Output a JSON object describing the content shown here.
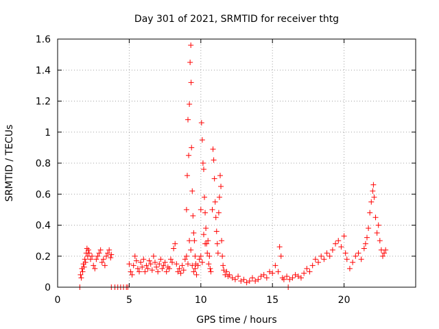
{
  "chart_data": {
    "type": "scatter",
    "title": "Day 301 of 2021, SRMTID for receiver thtg",
    "xlabel": "GPS time / hours",
    "ylabel": "SRMTID / TECUs",
    "xlim": [
      0,
      25
    ],
    "ylim": [
      0,
      1.6
    ],
    "xticks": [
      0,
      5,
      10,
      15,
      20
    ],
    "xtick_labels": [
      "0",
      "5",
      "10",
      "15",
      "20"
    ],
    "yticks": [
      0,
      0.2,
      0.4,
      0.6,
      0.8,
      1,
      1.2,
      1.4,
      1.6
    ],
    "ytick_labels": [
      "0",
      "0.2",
      "0.4",
      "0.6",
      "0.8",
      "1",
      "1.2",
      "1.4",
      "1.6"
    ],
    "grid": true,
    "marker": "+",
    "color": "#ff0000",
    "series": [
      {
        "name": "SRMTID",
        "points": [
          [
            1.55,
            0.0
          ],
          [
            1.6,
            0.08
          ],
          [
            1.65,
            0.06
          ],
          [
            1.7,
            0.12
          ],
          [
            1.75,
            0.1
          ],
          [
            1.8,
            0.15
          ],
          [
            1.85,
            0.13
          ],
          [
            1.9,
            0.18
          ],
          [
            1.95,
            0.16
          ],
          [
            2.0,
            0.22
          ],
          [
            2.05,
            0.25
          ],
          [
            2.1,
            0.2
          ],
          [
            2.15,
            0.24
          ],
          [
            2.2,
            0.22
          ],
          [
            2.3,
            0.18
          ],
          [
            2.4,
            0.2
          ],
          [
            2.5,
            0.14
          ],
          [
            2.6,
            0.12
          ],
          [
            2.7,
            0.18
          ],
          [
            2.8,
            0.2
          ],
          [
            2.9,
            0.22
          ],
          [
            3.0,
            0.24
          ],
          [
            3.1,
            0.16
          ],
          [
            3.2,
            0.18
          ],
          [
            3.3,
            0.14
          ],
          [
            3.4,
            0.2
          ],
          [
            3.5,
            0.22
          ],
          [
            3.6,
            0.24
          ],
          [
            3.7,
            0.19
          ],
          [
            3.75,
            0.21
          ],
          [
            3.75,
            0.0
          ],
          [
            4.0,
            0.0
          ],
          [
            4.2,
            0.0
          ],
          [
            4.4,
            0.0
          ],
          [
            4.6,
            0.0
          ],
          [
            4.8,
            0.0
          ],
          [
            4.9,
            0.0
          ],
          [
            5.0,
            0.15
          ],
          [
            5.1,
            0.1
          ],
          [
            5.2,
            0.08
          ],
          [
            5.3,
            0.14
          ],
          [
            5.4,
            0.2
          ],
          [
            5.5,
            0.17
          ],
          [
            5.6,
            0.12
          ],
          [
            5.7,
            0.1
          ],
          [
            5.8,
            0.16
          ],
          [
            5.9,
            0.13
          ],
          [
            6.0,
            0.18
          ],
          [
            6.1,
            0.1
          ],
          [
            6.2,
            0.14
          ],
          [
            6.3,
            0.12
          ],
          [
            6.4,
            0.17
          ],
          [
            6.5,
            0.15
          ],
          [
            6.6,
            0.11
          ],
          [
            6.7,
            0.2
          ],
          [
            6.8,
            0.16
          ],
          [
            6.9,
            0.13
          ],
          [
            7.0,
            0.1
          ],
          [
            7.1,
            0.15
          ],
          [
            7.2,
            0.18
          ],
          [
            7.3,
            0.12
          ],
          [
            7.4,
            0.14
          ],
          [
            7.5,
            0.16
          ],
          [
            7.6,
            0.1
          ],
          [
            7.7,
            0.13
          ],
          [
            7.8,
            0.12
          ],
          [
            7.9,
            0.18
          ],
          [
            8.0,
            0.16
          ],
          [
            8.1,
            0.25
          ],
          [
            8.2,
            0.28
          ],
          [
            8.3,
            0.15
          ],
          [
            8.4,
            0.1
          ],
          [
            8.5,
            0.12
          ],
          [
            8.6,
            0.09
          ],
          [
            8.7,
            0.14
          ],
          [
            8.8,
            0.11
          ],
          [
            8.9,
            0.18
          ],
          [
            9.0,
            0.5
          ],
          [
            9.05,
            0.72
          ],
          [
            9.1,
            1.08
          ],
          [
            9.15,
            0.85
          ],
          [
            9.2,
            1.18
          ],
          [
            9.25,
            1.45
          ],
          [
            9.3,
            1.56
          ],
          [
            9.32,
            1.32
          ],
          [
            9.35,
            0.9
          ],
          [
            9.4,
            0.62
          ],
          [
            9.45,
            0.46
          ],
          [
            9.5,
            0.35
          ],
          [
            9.55,
            0.3
          ],
          [
            9.6,
            0.2
          ],
          [
            9.65,
            0.15
          ],
          [
            9.0,
            0.2
          ],
          [
            9.1,
            0.15
          ],
          [
            9.2,
            0.3
          ],
          [
            9.3,
            0.24
          ],
          [
            9.4,
            0.14
          ],
          [
            9.5,
            0.1
          ],
          [
            9.6,
            0.12
          ],
          [
            9.7,
            0.08
          ],
          [
            9.8,
            0.14
          ],
          [
            9.9,
            0.18
          ],
          [
            10.0,
            0.5
          ],
          [
            10.05,
            1.06
          ],
          [
            10.1,
            0.95
          ],
          [
            10.15,
            0.8
          ],
          [
            10.2,
            0.76
          ],
          [
            10.25,
            0.58
          ],
          [
            10.3,
            0.48
          ],
          [
            10.35,
            0.38
          ],
          [
            10.4,
            0.28
          ],
          [
            10.45,
            0.22
          ],
          [
            10.5,
            0.3
          ],
          [
            10.55,
            0.15
          ],
          [
            10.6,
            0.2
          ],
          [
            10.65,
            0.12
          ],
          [
            10.7,
            0.1
          ],
          [
            10.0,
            0.2
          ],
          [
            10.1,
            0.16
          ],
          [
            10.2,
            0.34
          ],
          [
            10.3,
            0.28
          ],
          [
            10.8,
            0.5
          ],
          [
            10.85,
            0.89
          ],
          [
            10.9,
            0.82
          ],
          [
            10.95,
            0.7
          ],
          [
            11.0,
            0.55
          ],
          [
            11.05,
            0.45
          ],
          [
            11.1,
            0.36
          ],
          [
            11.15,
            0.28
          ],
          [
            11.2,
            0.22
          ],
          [
            11.25,
            0.48
          ],
          [
            11.3,
            0.58
          ],
          [
            11.35,
            0.72
          ],
          [
            11.4,
            0.65
          ],
          [
            11.45,
            0.3
          ],
          [
            11.5,
            0.2
          ],
          [
            11.55,
            0.14
          ],
          [
            11.6,
            0.11
          ],
          [
            11.7,
            0.08
          ],
          [
            11.8,
            0.1
          ],
          [
            11.9,
            0.07
          ],
          [
            12.0,
            0.08
          ],
          [
            12.2,
            0.06
          ],
          [
            12.4,
            0.05
          ],
          [
            12.6,
            0.07
          ],
          [
            12.8,
            0.04
          ],
          [
            13.0,
            0.05
          ],
          [
            13.2,
            0.03
          ],
          [
            13.4,
            0.04
          ],
          [
            13.6,
            0.06
          ],
          [
            13.8,
            0.04
          ],
          [
            14.0,
            0.05
          ],
          [
            14.2,
            0.07
          ],
          [
            14.4,
            0.08
          ],
          [
            14.6,
            0.06
          ],
          [
            14.8,
            0.1
          ],
          [
            15.0,
            0.09
          ],
          [
            15.2,
            0.14
          ],
          [
            15.4,
            0.1
          ],
          [
            15.5,
            0.26
          ],
          [
            15.6,
            0.2
          ],
          [
            15.7,
            0.06
          ],
          [
            15.8,
            0.05
          ],
          [
            16.0,
            0.07
          ],
          [
            16.1,
            0.0
          ],
          [
            16.2,
            0.05
          ],
          [
            16.4,
            0.06
          ],
          [
            16.6,
            0.08
          ],
          [
            16.8,
            0.07
          ],
          [
            17.0,
            0.06
          ],
          [
            17.2,
            0.09
          ],
          [
            17.4,
            0.12
          ],
          [
            17.6,
            0.1
          ],
          [
            17.8,
            0.14
          ],
          [
            18.0,
            0.18
          ],
          [
            18.2,
            0.16
          ],
          [
            18.4,
            0.2
          ],
          [
            18.6,
            0.18
          ],
          [
            18.8,
            0.22
          ],
          [
            19.0,
            0.2
          ],
          [
            19.2,
            0.24
          ],
          [
            19.4,
            0.28
          ],
          [
            19.6,
            0.3
          ],
          [
            19.8,
            0.26
          ],
          [
            20.0,
            0.33
          ],
          [
            20.1,
            0.22
          ],
          [
            20.2,
            0.18
          ],
          [
            20.4,
            0.12
          ],
          [
            20.6,
            0.16
          ],
          [
            20.8,
            0.2
          ],
          [
            21.0,
            0.22
          ],
          [
            21.2,
            0.18
          ],
          [
            21.4,
            0.25
          ],
          [
            21.5,
            0.28
          ],
          [
            21.6,
            0.32
          ],
          [
            21.7,
            0.38
          ],
          [
            21.8,
            0.48
          ],
          [
            21.9,
            0.55
          ],
          [
            22.0,
            0.62
          ],
          [
            22.05,
            0.66
          ],
          [
            22.1,
            0.58
          ],
          [
            22.2,
            0.45
          ],
          [
            22.3,
            0.35
          ],
          [
            22.4,
            0.4
          ],
          [
            22.5,
            0.3
          ],
          [
            22.6,
            0.24
          ],
          [
            22.7,
            0.2
          ],
          [
            22.8,
            0.22
          ],
          [
            22.9,
            0.24
          ]
        ]
      }
    ]
  }
}
